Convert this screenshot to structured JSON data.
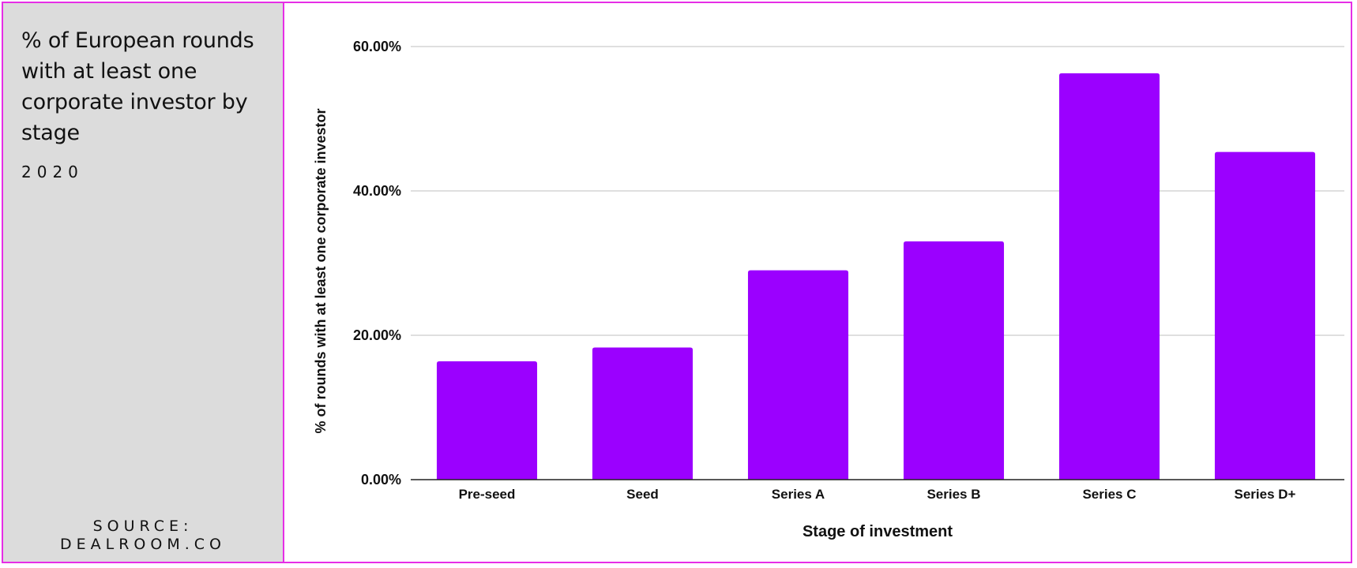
{
  "sidebar": {
    "title": "% of European rounds with at least one corporate investor by stage",
    "subtitle": "2020",
    "source_line1": "SOURCE:",
    "source_line2": "DEALROOM.CO"
  },
  "colors": {
    "bar": "#9b00ff",
    "frame": "#e62ee6",
    "sidebar_bg": "#dcdcdc",
    "gridline": "#cccccc",
    "axis": "#222222"
  },
  "chart_data": {
    "type": "bar",
    "title": "",
    "xlabel": "Stage of investment",
    "ylabel": "% of rounds with at least one corporate investor",
    "categories": [
      "Pre-seed",
      "Seed",
      "Series A",
      "Series B",
      "Series C",
      "Series D+"
    ],
    "values": [
      16.4,
      18.3,
      29.0,
      33.0,
      56.3,
      45.4
    ],
    "ylim": [
      0,
      60
    ],
    "yticks": [
      0,
      20,
      40,
      60
    ],
    "ytick_labels": [
      "0.00%",
      "20.00%",
      "40.00%",
      "60.00%"
    ],
    "grid": true,
    "legend": "none"
  }
}
